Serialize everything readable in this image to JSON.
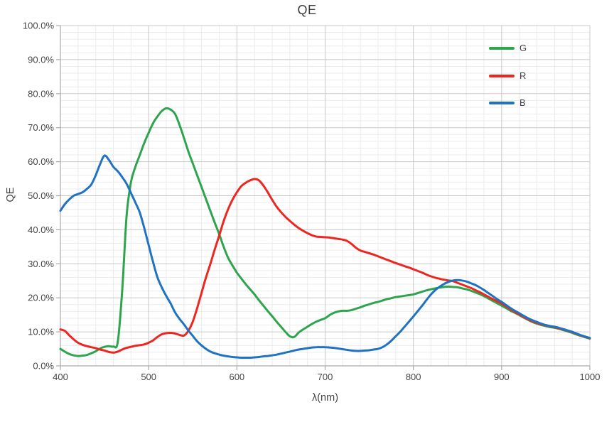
{
  "chart_data": {
    "type": "line",
    "title": "QE",
    "xlabel": "λ(nm)",
    "ylabel": "QE",
    "xlim": [
      400,
      1000
    ],
    "ylim": [
      0,
      100
    ],
    "x_major_ticks": [
      400,
      500,
      600,
      700,
      800,
      900,
      1000
    ],
    "x_tick_labels": [
      "400",
      "500",
      "600",
      "700",
      "800",
      "900",
      "1000"
    ],
    "y_major_ticks": [
      0,
      10,
      20,
      30,
      40,
      50,
      60,
      70,
      80,
      90,
      100
    ],
    "y_tick_labels": [
      "0.0%",
      "10.0%",
      "20.0%",
      "30.0%",
      "40.0%",
      "50.0%",
      "60.0%",
      "70.0%",
      "80.0%",
      "90.0%",
      "100.0%"
    ],
    "x_minor_step": 20,
    "y_minor_step": 2,
    "grid": {
      "major": true,
      "minor": true
    },
    "legend": {
      "position": "top-right-inside",
      "entries": [
        "G",
        "R",
        "B"
      ]
    },
    "unit_y": "percent QE",
    "x": [
      400,
      405,
      410,
      415,
      420,
      425,
      430,
      435,
      440,
      445,
      450,
      455,
      460,
      465,
      470,
      475,
      480,
      485,
      490,
      495,
      500,
      505,
      510,
      515,
      520,
      525,
      530,
      535,
      540,
      545,
      550,
      555,
      560,
      565,
      570,
      575,
      580,
      585,
      590,
      595,
      600,
      605,
      610,
      615,
      620,
      625,
      630,
      635,
      640,
      645,
      650,
      655,
      660,
      665,
      670,
      675,
      680,
      685,
      690,
      695,
      700,
      705,
      710,
      715,
      720,
      725,
      730,
      735,
      740,
      745,
      750,
      755,
      760,
      765,
      770,
      775,
      780,
      785,
      790,
      795,
      800,
      805,
      810,
      815,
      820,
      825,
      830,
      835,
      840,
      845,
      850,
      855,
      860,
      865,
      870,
      875,
      880,
      885,
      890,
      895,
      900,
      905,
      910,
      915,
      920,
      925,
      930,
      935,
      940,
      945,
      950,
      955,
      960,
      965,
      970,
      975,
      980,
      985,
      990,
      995,
      1000
    ],
    "series": [
      {
        "name": "G",
        "color": "#2EA44D",
        "values": [
          5.0,
          4.2,
          3.5,
          3.1,
          2.9,
          3.0,
          3.2,
          3.7,
          4.3,
          5.1,
          5.6,
          5.8,
          5.7,
          7.0,
          22.0,
          44.0,
          54.0,
          58.5,
          62.0,
          65.5,
          68.5,
          71.3,
          73.3,
          74.9,
          75.7,
          75.3,
          74.0,
          70.8,
          67.0,
          63.0,
          59.5,
          56.0,
          52.5,
          49.0,
          45.5,
          42.0,
          38.7,
          35.0,
          31.8,
          29.5,
          27.4,
          25.7,
          24.0,
          22.5,
          21.0,
          19.3,
          17.7,
          16.1,
          14.6,
          13.0,
          11.5,
          10.0,
          8.7,
          8.5,
          9.8,
          10.7,
          11.5,
          12.3,
          13.0,
          13.5,
          14.0,
          14.9,
          15.6,
          16.0,
          16.2,
          16.2,
          16.4,
          16.8,
          17.2,
          17.7,
          18.1,
          18.5,
          18.8,
          19.2,
          19.6,
          19.9,
          20.2,
          20.4,
          20.6,
          20.8,
          21.0,
          21.4,
          21.8,
          22.2,
          22.5,
          22.8,
          23.0,
          23.2,
          23.3,
          23.2,
          23.1,
          22.8,
          22.5,
          22.1,
          21.6,
          21.1,
          20.5,
          19.8,
          19.1,
          18.4,
          17.7,
          17.0,
          16.2,
          15.6,
          14.9,
          14.2,
          13.5,
          12.9,
          12.4,
          12.0,
          11.7,
          11.4,
          11.2,
          10.9,
          10.5,
          10.1,
          9.7,
          9.2,
          8.8,
          8.4,
          8.0
        ]
      },
      {
        "name": "R",
        "color": "#EE2620",
        "values": [
          10.7,
          10.3,
          9.0,
          7.8,
          6.8,
          6.2,
          5.8,
          5.5,
          5.2,
          4.8,
          4.5,
          4.1,
          3.9,
          4.2,
          4.8,
          5.3,
          5.6,
          5.9,
          6.1,
          6.3,
          6.8,
          7.5,
          8.5,
          9.3,
          9.6,
          9.7,
          9.5,
          9.1,
          8.9,
          10.3,
          13.0,
          17.0,
          21.5,
          26.0,
          30.0,
          34.3,
          38.3,
          42.5,
          46.0,
          48.8,
          51.0,
          52.8,
          53.8,
          54.5,
          54.9,
          54.5,
          53.0,
          51.0,
          48.8,
          46.8,
          45.2,
          43.8,
          42.6,
          41.5,
          40.5,
          39.7,
          39.0,
          38.4,
          38.0,
          37.9,
          37.8,
          37.7,
          37.5,
          37.3,
          37.1,
          36.7,
          35.8,
          34.7,
          33.9,
          33.5,
          33.1,
          32.7,
          32.2,
          31.7,
          31.2,
          30.7,
          30.2,
          29.8,
          29.3,
          28.9,
          28.4,
          27.9,
          27.4,
          26.8,
          26.3,
          25.9,
          25.6,
          25.3,
          25.1,
          24.9,
          24.4,
          23.9,
          23.4,
          22.9,
          22.3,
          21.7,
          21.0,
          20.3,
          19.6,
          19.0,
          18.3,
          17.5,
          16.6,
          15.8,
          15.1,
          14.4,
          13.7,
          13.1,
          12.6,
          12.2,
          11.9,
          11.6,
          11.4,
          11.0,
          10.7,
          10.3,
          9.9,
          9.4,
          8.9,
          8.5,
          8.1
        ]
      },
      {
        "name": "B",
        "color": "#2072C2",
        "values": [
          45.6,
          47.5,
          48.9,
          50.0,
          50.5,
          51.0,
          52.0,
          53.3,
          56.0,
          59.3,
          61.8,
          60.5,
          58.5,
          57.2,
          55.5,
          53.5,
          50.8,
          48.0,
          45.0,
          40.5,
          35.5,
          30.5,
          26.0,
          23.0,
          20.5,
          18.3,
          15.7,
          13.8,
          12.2,
          10.4,
          8.8,
          7.2,
          6.0,
          5.0,
          4.2,
          3.7,
          3.3,
          3.0,
          2.8,
          2.6,
          2.5,
          2.4,
          2.4,
          2.4,
          2.5,
          2.6,
          2.8,
          2.9,
          3.1,
          3.3,
          3.6,
          3.9,
          4.2,
          4.5,
          4.8,
          5.0,
          5.2,
          5.4,
          5.5,
          5.5,
          5.5,
          5.4,
          5.3,
          5.1,
          4.9,
          4.7,
          4.5,
          4.4,
          4.4,
          4.5,
          4.6,
          4.8,
          5.0,
          5.5,
          6.3,
          7.4,
          8.7,
          10.0,
          11.5,
          13.0,
          14.5,
          16.1,
          17.7,
          19.4,
          21.0,
          22.3,
          23.3,
          24.1,
          24.7,
          25.1,
          25.2,
          25.1,
          24.8,
          24.3,
          23.8,
          23.1,
          22.3,
          21.4,
          20.5,
          19.6,
          18.8,
          17.9,
          17.0,
          16.2,
          15.5,
          14.7,
          14.0,
          13.4,
          12.9,
          12.4,
          12.0,
          11.7,
          11.5,
          11.2,
          10.8,
          10.4,
          10.0,
          9.5,
          9.0,
          8.6,
          8.2
        ]
      }
    ]
  },
  "style": {
    "background": "#FFFFFF",
    "grid_minor_color": "#ECECEC",
    "grid_major_color": "#C8C8C8",
    "axis_color": "#ABABAB",
    "tick_text_color": "#454545",
    "title_color": "#3D3D3D",
    "series_line_width": 3
  }
}
